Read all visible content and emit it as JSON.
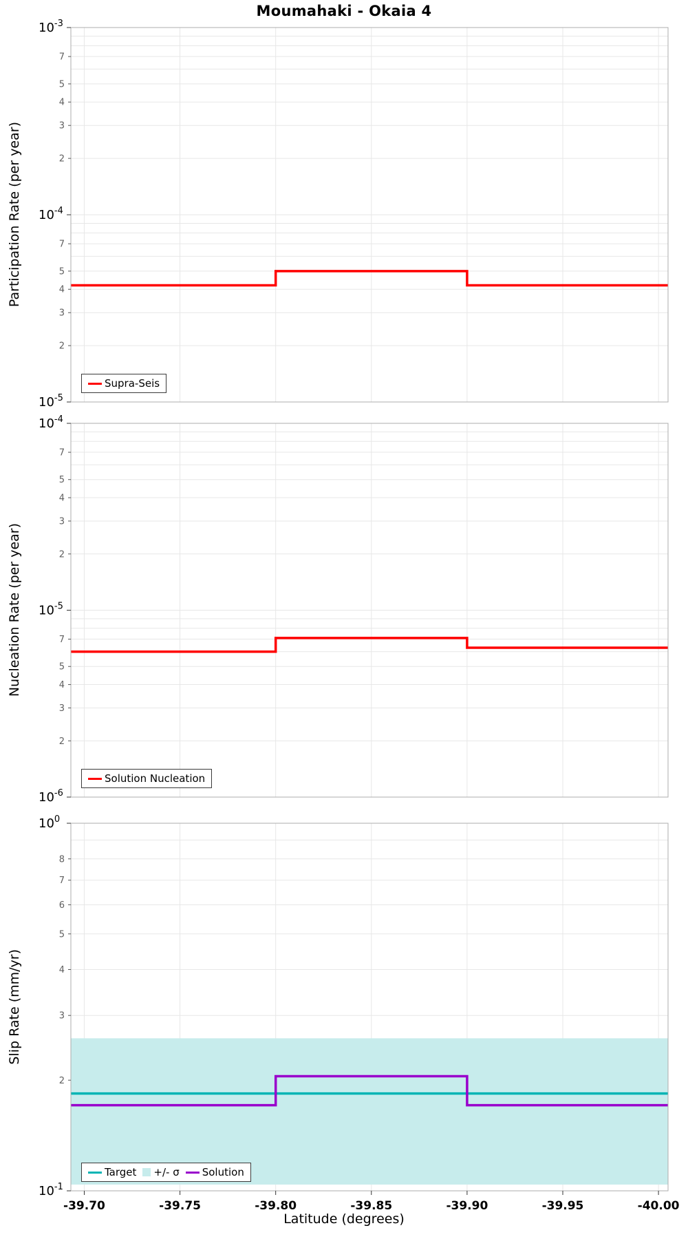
{
  "title": "Moumahaki - Okaia 4",
  "xlabel": "Latitude (degrees)",
  "colors": {
    "supra_seis": "#ff0000",
    "nucleation": "#ff0000",
    "target": "#00b4b4",
    "sigma_band": "#c7ecec",
    "solution": "#9900cc",
    "grid": "#e7e7e7",
    "border": "#adadad",
    "minor_tick_label": "#606060"
  },
  "x_axis": {
    "label": "Latitude (degrees)",
    "range": [
      -39.693,
      -40.005
    ],
    "ticks": [
      -39.7,
      -39.75,
      -39.8,
      -39.85,
      -39.9,
      -39.95,
      -40.0
    ],
    "tick_labels": [
      "-39.70",
      "-39.75",
      "-39.80",
      "-39.85",
      "-39.90",
      "-39.95",
      "-40.00"
    ]
  },
  "chart_data": [
    {
      "type": "line",
      "ylabel": "Participation Rate (per year)",
      "yscale": "log",
      "ylim": [
        1e-05,
        0.001
      ],
      "minor_tick_labels": [
        7,
        5,
        4,
        3,
        2
      ],
      "grid": true,
      "legend_position": "bottom-left",
      "legend": [
        {
          "label": "Supra-Seis",
          "swatch": "line",
          "color": "#ff0000"
        }
      ],
      "series": [
        {
          "name": "Supra-Seis",
          "type": "step",
          "color": "#ff0000",
          "segments": [
            {
              "x": [
                -39.693,
                -39.8
              ],
              "y": 4.2e-05
            },
            {
              "x": [
                -39.8,
                -39.9
              ],
              "y": 5e-05
            },
            {
              "x": [
                -39.9,
                -40.005
              ],
              "y": 4.2e-05
            }
          ]
        }
      ]
    },
    {
      "type": "line",
      "ylabel": "Nucleation Rate (per year)",
      "yscale": "log",
      "ylim": [
        1e-06,
        0.0001
      ],
      "minor_tick_labels": [
        7,
        5,
        4,
        3,
        2
      ],
      "grid": true,
      "legend_position": "bottom-left",
      "legend": [
        {
          "label": "Solution Nucleation",
          "swatch": "line",
          "color": "#ff0000"
        }
      ],
      "series": [
        {
          "name": "Solution Nucleation",
          "type": "step",
          "color": "#ff0000",
          "segments": [
            {
              "x": [
                -39.693,
                -39.8
              ],
              "y": 6e-06
            },
            {
              "x": [
                -39.8,
                -39.9
              ],
              "y": 7.1e-06
            },
            {
              "x": [
                -39.9,
                -40.005
              ],
              "y": 6.3e-06
            }
          ]
        }
      ]
    },
    {
      "type": "line",
      "ylabel": "Slip Rate (mm/yr)",
      "yscale": "log",
      "ylim": [
        0.1,
        1.0
      ],
      "minor_tick_labels": [
        8,
        7,
        6,
        5,
        4,
        3,
        2
      ],
      "grid": true,
      "legend_position": "bottom-left",
      "band": {
        "name": "+/- σ",
        "y": [
          0.104,
          0.26
        ],
        "color": "#c7ecec"
      },
      "legend": [
        {
          "label": "Target",
          "swatch": "line",
          "color": "#00b4b4"
        },
        {
          "label": "+/- σ",
          "swatch": "box",
          "color": "#c7ecec"
        },
        {
          "label": "Solution",
          "swatch": "line",
          "color": "#9900cc"
        }
      ],
      "series": [
        {
          "name": "Target",
          "type": "line",
          "color": "#00b4b4",
          "segments": [
            {
              "x": [
                -39.693,
                -40.005
              ],
              "y": 0.184
            }
          ]
        },
        {
          "name": "Solution",
          "type": "step",
          "color": "#9900cc",
          "segments": [
            {
              "x": [
                -39.693,
                -39.8
              ],
              "y": 0.171
            },
            {
              "x": [
                -39.8,
                -39.9
              ],
              "y": 0.205
            },
            {
              "x": [
                -39.9,
                -40.005
              ],
              "y": 0.171
            }
          ]
        }
      ]
    }
  ]
}
